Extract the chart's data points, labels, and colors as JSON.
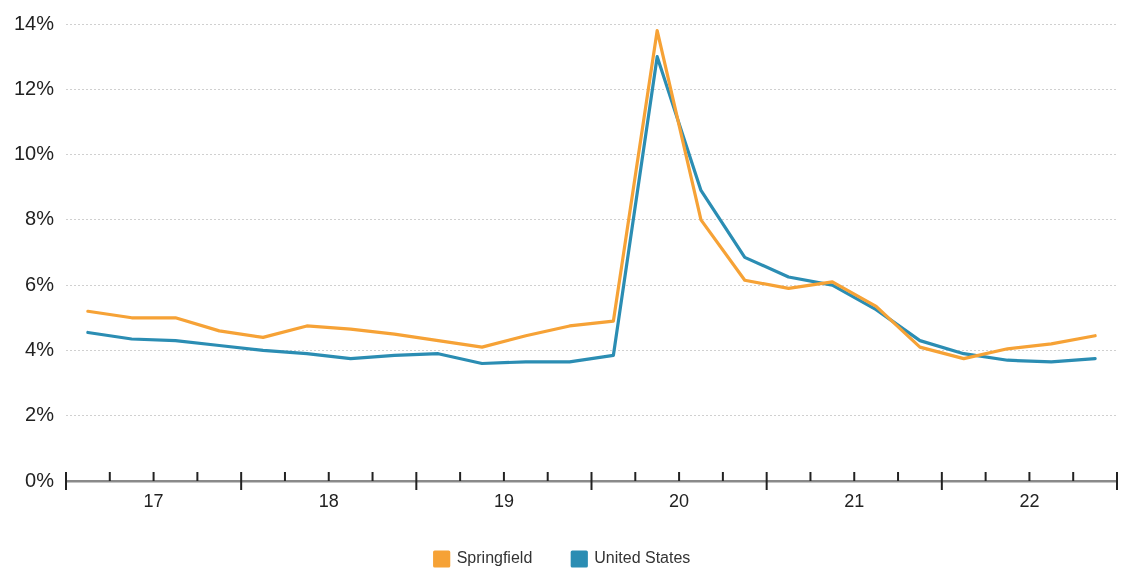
{
  "chart_data": {
    "type": "line",
    "x": [
      16.625,
      16.875,
      17.125,
      17.375,
      17.625,
      17.875,
      18.125,
      18.375,
      18.625,
      18.875,
      19.125,
      19.375,
      19.625,
      19.875,
      20.125,
      20.375,
      20.625,
      20.875,
      21.125,
      21.375,
      21.625,
      21.875,
      22.125,
      22.375
    ],
    "xlim": [
      16.5,
      22.5
    ],
    "xticks": [
      {
        "value": 16.5,
        "label": null
      },
      {
        "value": 16.75,
        "label": null
      },
      17,
      {
        "value": 17.25,
        "label": null
      },
      {
        "value": 17.5,
        "label": null
      },
      {
        "value": 17.75,
        "label": null
      },
      18,
      {
        "value": 18.25,
        "label": null
      },
      {
        "value": 18.5,
        "label": null
      },
      {
        "value": 18.75,
        "label": null
      },
      19,
      {
        "value": 19.25,
        "label": null
      },
      {
        "value": 19.5,
        "label": null
      },
      {
        "value": 19.75,
        "label": null
      },
      20,
      {
        "value": 20.25,
        "label": null
      },
      {
        "value": 20.5,
        "label": null
      },
      {
        "value": 20.75,
        "label": null
      },
      21,
      {
        "value": 21.25,
        "label": null
      },
      {
        "value": 21.5,
        "label": null
      },
      {
        "value": 21.75,
        "label": null
      },
      22,
      {
        "value": 22.25,
        "label": null
      },
      {
        "value": 22.5,
        "label": null
      }
    ],
    "ylim": [
      0,
      14
    ],
    "yticks": [
      {
        "value": 0,
        "label": "0%"
      },
      {
        "value": 2,
        "label": "2%"
      },
      {
        "value": 4,
        "label": "4%"
      },
      {
        "value": 6,
        "label": "6%"
      },
      {
        "value": 8,
        "label": "8%"
      },
      {
        "value": 10,
        "label": "10%"
      },
      {
        "value": 12,
        "label": "12%"
      },
      {
        "value": 14,
        "label": "14%"
      }
    ],
    "series": [
      {
        "name": "Springfield",
        "color": "#f6a236",
        "values": [
          5.2,
          5.0,
          5.0,
          4.6,
          4.4,
          4.75,
          4.65,
          4.5,
          4.3,
          4.1,
          4.45,
          4.75,
          4.9,
          13.8,
          8.0,
          6.15,
          5.9,
          6.1,
          5.35,
          4.1,
          3.75,
          4.05,
          4.2,
          4.45
        ]
      },
      {
        "name": "United States",
        "color": "#2b8db3",
        "values": [
          4.55,
          4.35,
          4.3,
          4.15,
          4.0,
          3.9,
          3.75,
          3.85,
          3.9,
          3.6,
          3.65,
          3.65,
          3.85,
          13.0,
          8.9,
          6.85,
          6.25,
          6.0,
          5.25,
          4.3,
          3.9,
          3.7,
          3.65,
          3.75
        ]
      }
    ],
    "grid": "y",
    "legend": "bottom",
    "marker": "none",
    "line_style": "solid"
  }
}
